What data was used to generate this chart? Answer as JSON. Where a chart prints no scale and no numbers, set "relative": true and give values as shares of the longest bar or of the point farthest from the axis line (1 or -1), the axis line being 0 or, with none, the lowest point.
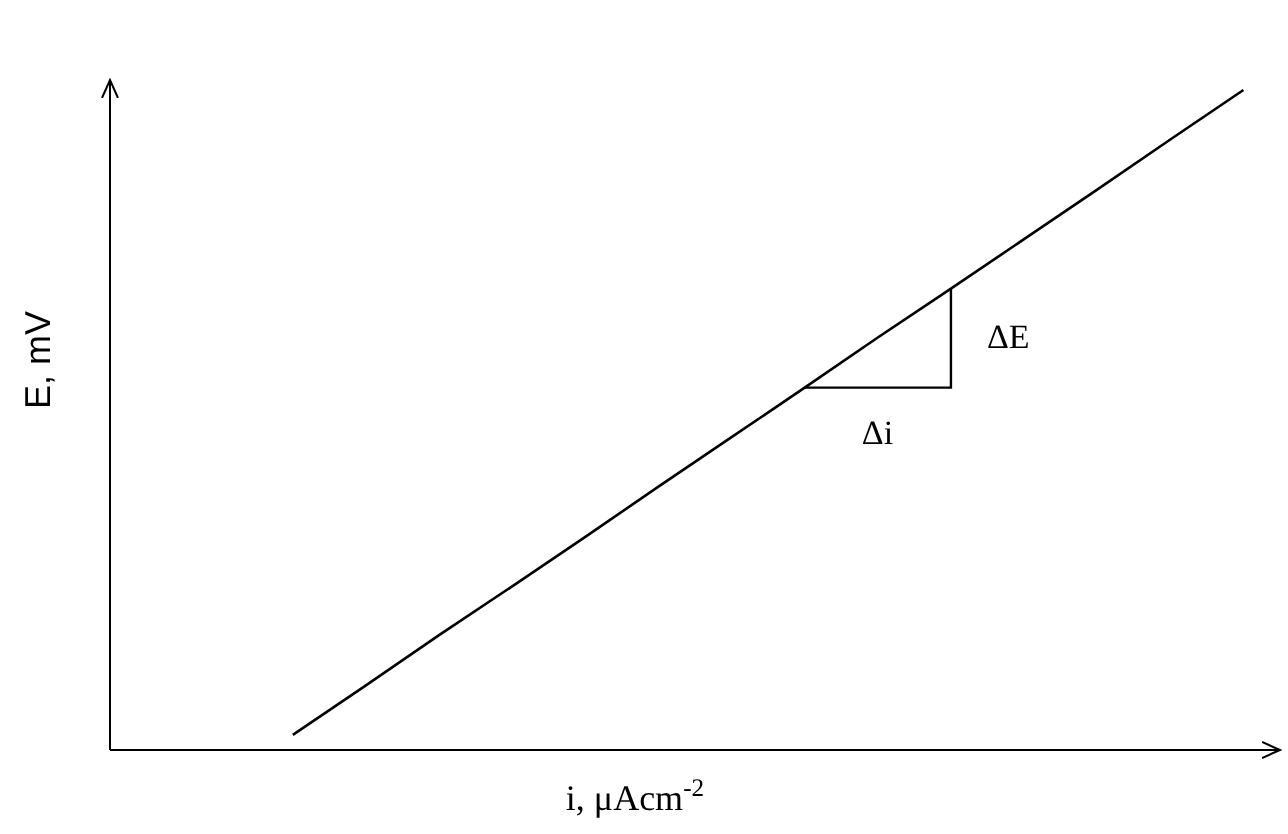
{
  "chart_data": {
    "type": "line",
    "relative": true,
    "xlabel": "i, μAcm$^{-2}$",
    "ylabel": "E, mV",
    "categories": [
      null,
      null,
      null,
      null,
      null,
      null,
      null,
      null,
      null,
      null,
      null,
      null,
      null,
      null,
      null,
      null
    ],
    "series": [
      {
        "color": "#000000",
        "values": [
          null,
          null,
          0.023,
          0.098,
          0.174,
          0.248,
          0.323,
          0.399,
          0.474,
          0.549,
          0.625,
          0.699,
          0.774,
          0.849,
          0.925,
          1
        ]
      }
    ],
    "annotations": [
      "ΔE",
      "Δi"
    ],
    "line_style": "solid"
  }
}
